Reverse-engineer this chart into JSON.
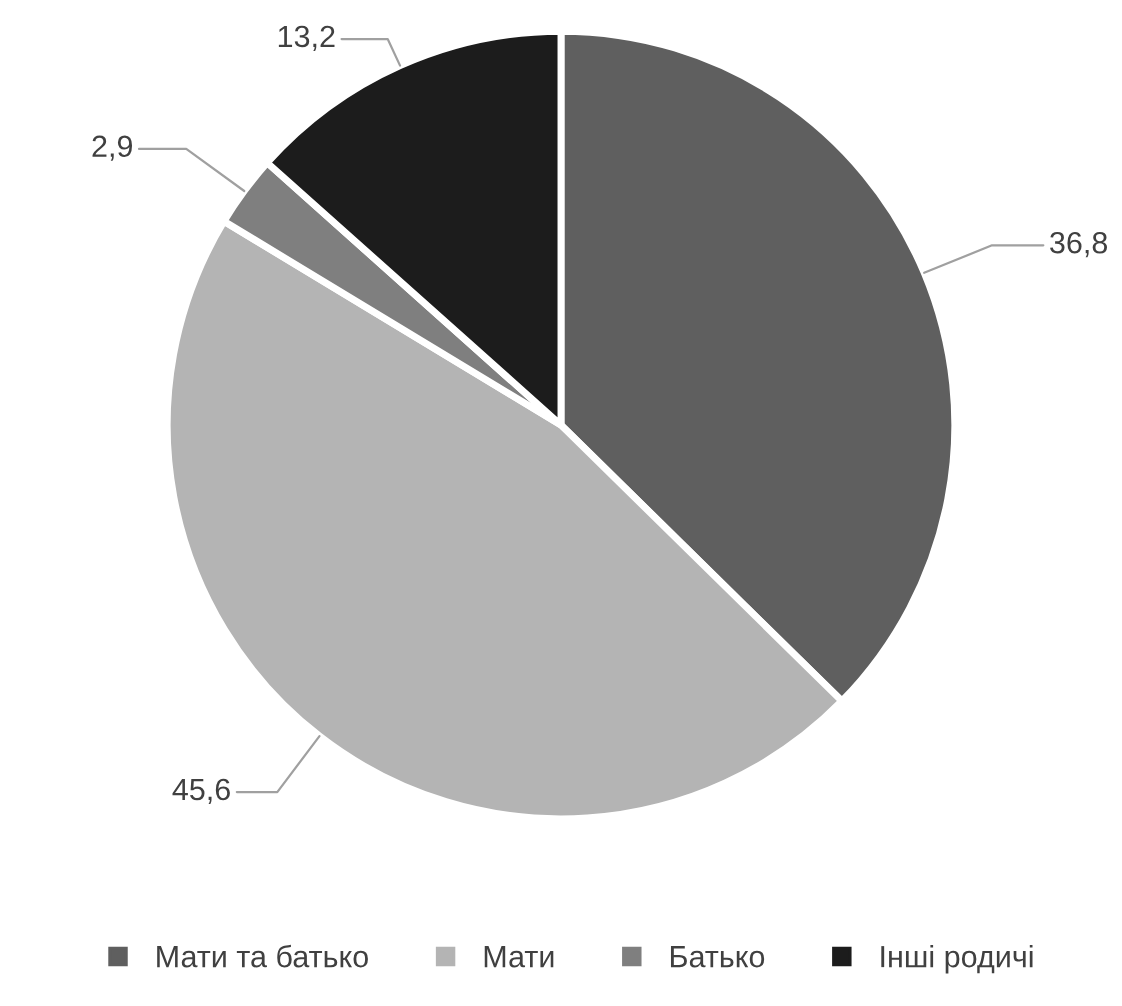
{
  "chart_data": {
    "type": "pie",
    "categories": [
      "Мати та батько",
      "Мати",
      "Батько",
      "Інші родичі"
    ],
    "values": [
      36.8,
      45.6,
      2.9,
      13.2
    ],
    "value_labels": [
      "36,8",
      "45,6",
      "2,9",
      "13,2"
    ],
    "colors": [
      "#5f5f5f",
      "#b4b4b4",
      "#7f7f7f",
      "#1c1c1c"
    ],
    "legend": "bottom"
  }
}
